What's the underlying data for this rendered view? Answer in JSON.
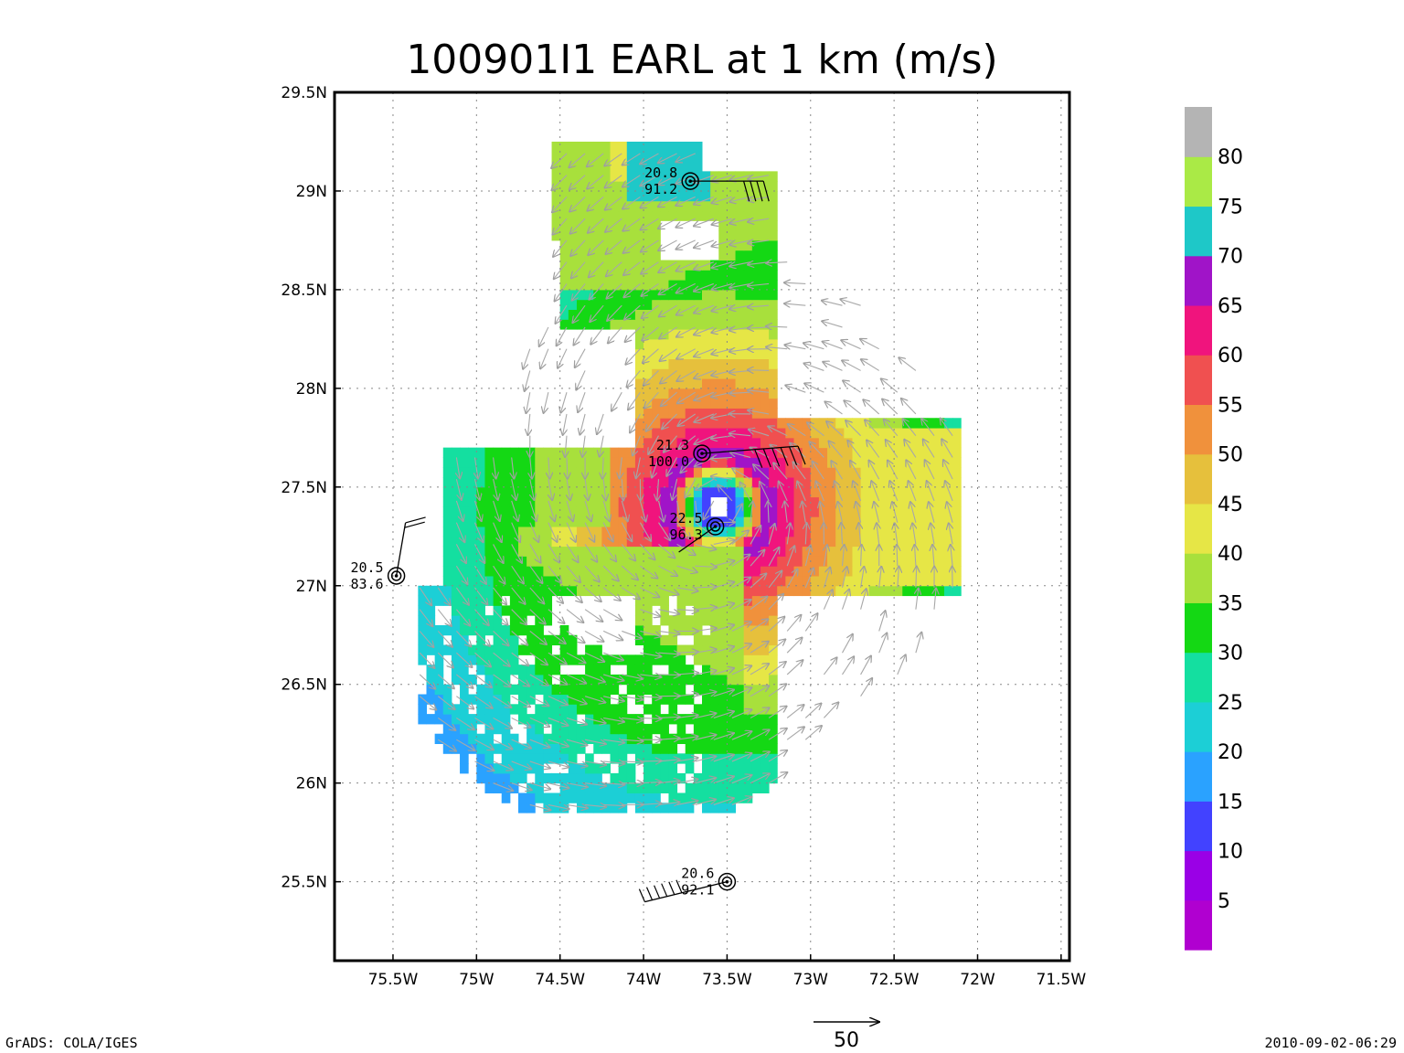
{
  "title": "100901I1 EARL at 1 km (m/s)",
  "footer": {
    "left": "GrADS: COLA/IGES",
    "right": "2010-09-02-06:29"
  },
  "reference_vector": {
    "label": "50",
    "value": 50
  },
  "chart_data": {
    "type": "heatmap",
    "title": "100901I1 EARL at 1 km (m/s)",
    "grid": "dotted",
    "xlim": [
      -75.85,
      -71.45
    ],
    "ylim": [
      25.1,
      29.5
    ],
    "x_ticks": [
      {
        "value": -75.5,
        "label": "75.5W"
      },
      {
        "value": -75.0,
        "label": "75W"
      },
      {
        "value": -74.5,
        "label": "74.5W"
      },
      {
        "value": -74.0,
        "label": "74W"
      },
      {
        "value": -73.5,
        "label": "73.5W"
      },
      {
        "value": -73.0,
        "label": "73W"
      },
      {
        "value": -72.5,
        "label": "72.5W"
      },
      {
        "value": -72.0,
        "label": "72W"
      },
      {
        "value": -71.5,
        "label": "71.5W"
      }
    ],
    "y_ticks": [
      {
        "value": 29.5,
        "label": "29.5N"
      },
      {
        "value": 29.0,
        "label": "29N"
      },
      {
        "value": 28.5,
        "label": "28.5N"
      },
      {
        "value": 28.0,
        "label": "28N"
      },
      {
        "value": 27.5,
        "label": "27.5N"
      },
      {
        "value": 27.0,
        "label": "27N"
      },
      {
        "value": 26.5,
        "label": "26.5N"
      },
      {
        "value": 26.0,
        "label": "26N"
      },
      {
        "value": 25.5,
        "label": "25.5N"
      }
    ],
    "colorbar": {
      "labels": [
        "5",
        "10",
        "15",
        "20",
        "25",
        "30",
        "35",
        "40",
        "45",
        "50",
        "55",
        "60",
        "65",
        "70",
        "75",
        "80"
      ],
      "colors": [
        "#b000d0",
        "#9a00e6",
        "#4242ff",
        "#2aa2ff",
        "#1ccfd6",
        "#14dfa0",
        "#14d814",
        "#a8e03c",
        "#e6e646",
        "#e6c03c",
        "#f0913c",
        "#f05050",
        "#f0147d",
        "#a014c8",
        "#1ec8c8",
        "#aaea46",
        "#b4b4b4"
      ]
    },
    "center": {
      "lon": -73.55,
      "lat": 27.4
    },
    "stations": [
      {
        "lon": -73.72,
        "lat": 29.05,
        "value1": "20.8",
        "value2": "91.2"
      },
      {
        "lon": -73.65,
        "lat": 27.67,
        "value1": "21.3",
        "value2": "100.0"
      },
      {
        "lon": -73.57,
        "lat": 27.3,
        "value1": "22.5",
        "value2": "96.3"
      },
      {
        "lon": -75.48,
        "lat": 27.05,
        "value1": "20.5",
        "value2": "83.6"
      },
      {
        "lon": -73.5,
        "lat": 25.5,
        "value1": "20.6",
        "value2": "92.1"
      }
    ]
  }
}
